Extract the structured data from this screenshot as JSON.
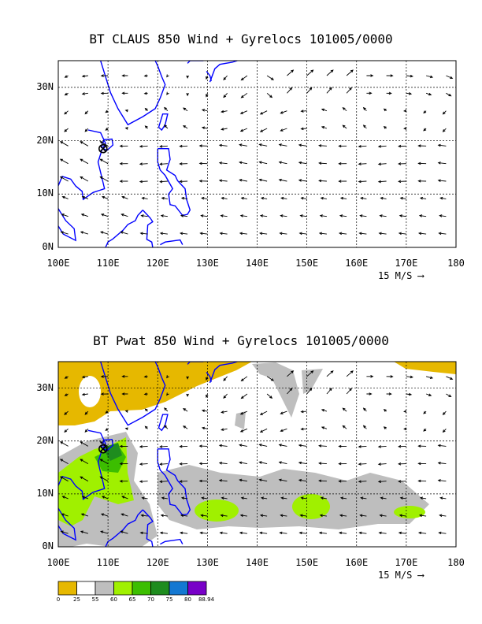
{
  "chart_data": [
    {
      "type": "vector-field",
      "title": "BT CLAUS 850 Wind + Gyrelocs 101005/0000",
      "x_ticks": [
        "100E",
        "110E",
        "120E",
        "130E",
        "140E",
        "150E",
        "160E",
        "170E",
        "180"
      ],
      "y_ticks": [
        "0N",
        "10N",
        "20N",
        "30N"
      ],
      "xlim": [
        100,
        180
      ],
      "ylim": [
        0,
        35
      ],
      "reference_vector": "15 M/S",
      "gyre_location": {
        "lon": 109,
        "lat": 18.5
      },
      "grid": true
    },
    {
      "type": "vector-field + filled contour",
      "title": "BT Pwat 850 Wind + Gyrelocs 101005/0000",
      "x_ticks": [
        "100E",
        "110E",
        "120E",
        "130E",
        "140E",
        "150E",
        "160E",
        "170E",
        "180"
      ],
      "y_ticks": [
        "0N",
        "10N",
        "20N",
        "30N"
      ],
      "xlim": [
        100,
        180
      ],
      "ylim": [
        0,
        35
      ],
      "reference_vector": "15 M/S",
      "gyre_location": {
        "lon": 109,
        "lat": 18.5
      },
      "grid": true,
      "colorbar": {
        "labels": [
          "0",
          "25",
          "55",
          "60",
          "65",
          "70",
          "75",
          "80",
          "88.94"
        ],
        "colors": [
          "#e6b800",
          "#ffffff",
          "#bebebe",
          "#a0f000",
          "#3cbe00",
          "#1e8c1e",
          "#1478d2",
          "#7800c8"
        ]
      }
    }
  ],
  "styles": {
    "coast": "#0000ff",
    "grid": "#000000"
  }
}
